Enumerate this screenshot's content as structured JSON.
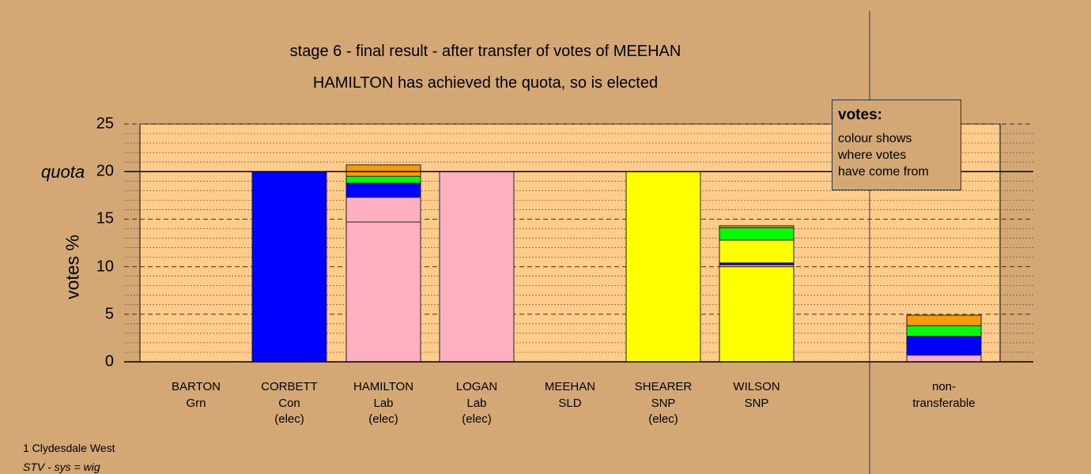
{
  "header": {
    "title": "stage 6 - final result - after transfer of votes of MEEHAN",
    "subtitle": "HAMILTON has achieved the quota, so is elected"
  },
  "legend": {
    "title": "votes:",
    "lines": [
      "colour shows",
      "where votes",
      "have come from"
    ]
  },
  "footer": {
    "ward": "1 Clydesdale West",
    "system": "STV - sys = wig"
  },
  "colors": {
    "background": "#d4a874",
    "plot_area": "#ffcc8c",
    "Con": "#0000ff",
    "Lab": "#ffb0c0",
    "SNP": "#ffff00",
    "Grn": "#00ff00",
    "SLD": "#ff9900"
  },
  "chart_data": {
    "type": "bar",
    "stacked": true,
    "ylabel": "votes %",
    "ylim": [
      0,
      25
    ],
    "yticks": [
      "0",
      "5",
      "10",
      "15",
      "20",
      "25"
    ],
    "quota": 20,
    "quota_label": "quota",
    "grid": true,
    "legend_position": "top-right",
    "categories": [
      {
        "name": "BARTON",
        "party": "Grn",
        "status": ""
      },
      {
        "name": "CORBETT",
        "party": "Con",
        "status": "(elec)"
      },
      {
        "name": "HAMILTON",
        "party": "Lab",
        "status": "(elec)"
      },
      {
        "name": "LOGAN",
        "party": "Lab",
        "status": "(elec)"
      },
      {
        "name": "MEEHAN",
        "party": "SLD",
        "status": ""
      },
      {
        "name": "SHEARER",
        "party": "SNP",
        "status": "(elec)"
      },
      {
        "name": "WILSON",
        "party": "SNP",
        "status": ""
      },
      {
        "name": "",
        "party": "",
        "status": ""
      },
      {
        "name": "non-",
        "party": "transferable",
        "status": ""
      }
    ],
    "segments": [
      [],
      [
        {
          "color": "#0000ff",
          "value": 20.0
        }
      ],
      [
        {
          "color": "#ffb0c0",
          "value": 14.7
        },
        {
          "color": "#ffb0c0",
          "value": 2.6
        },
        {
          "color": "#0000ff",
          "value": 1.5
        },
        {
          "color": "#00ff00",
          "value": 0.7
        },
        {
          "color": "#ff9900",
          "value": 1.2
        }
      ],
      [
        {
          "color": "#ffb0c0",
          "value": 20.0
        }
      ],
      [],
      [
        {
          "color": "#ffff00",
          "value": 20.0
        }
      ],
      [
        {
          "color": "#ffff00",
          "value": 10.0
        },
        {
          "color": "#ffb0c0",
          "value": 0.2
        },
        {
          "color": "#0000ff",
          "value": 0.2
        },
        {
          "color": "#ffff00",
          "value": 2.4
        },
        {
          "color": "#00ff00",
          "value": 1.3
        },
        {
          "color": "#ff9900",
          "value": 0.2
        }
      ],
      [],
      [
        {
          "color": "#ffb0c0",
          "value": 0.7
        },
        {
          "color": "#0000ff",
          "value": 2.0
        },
        {
          "color": "#00ff00",
          "value": 1.1
        },
        {
          "color": "#ff9900",
          "value": 1.1
        }
      ]
    ]
  }
}
